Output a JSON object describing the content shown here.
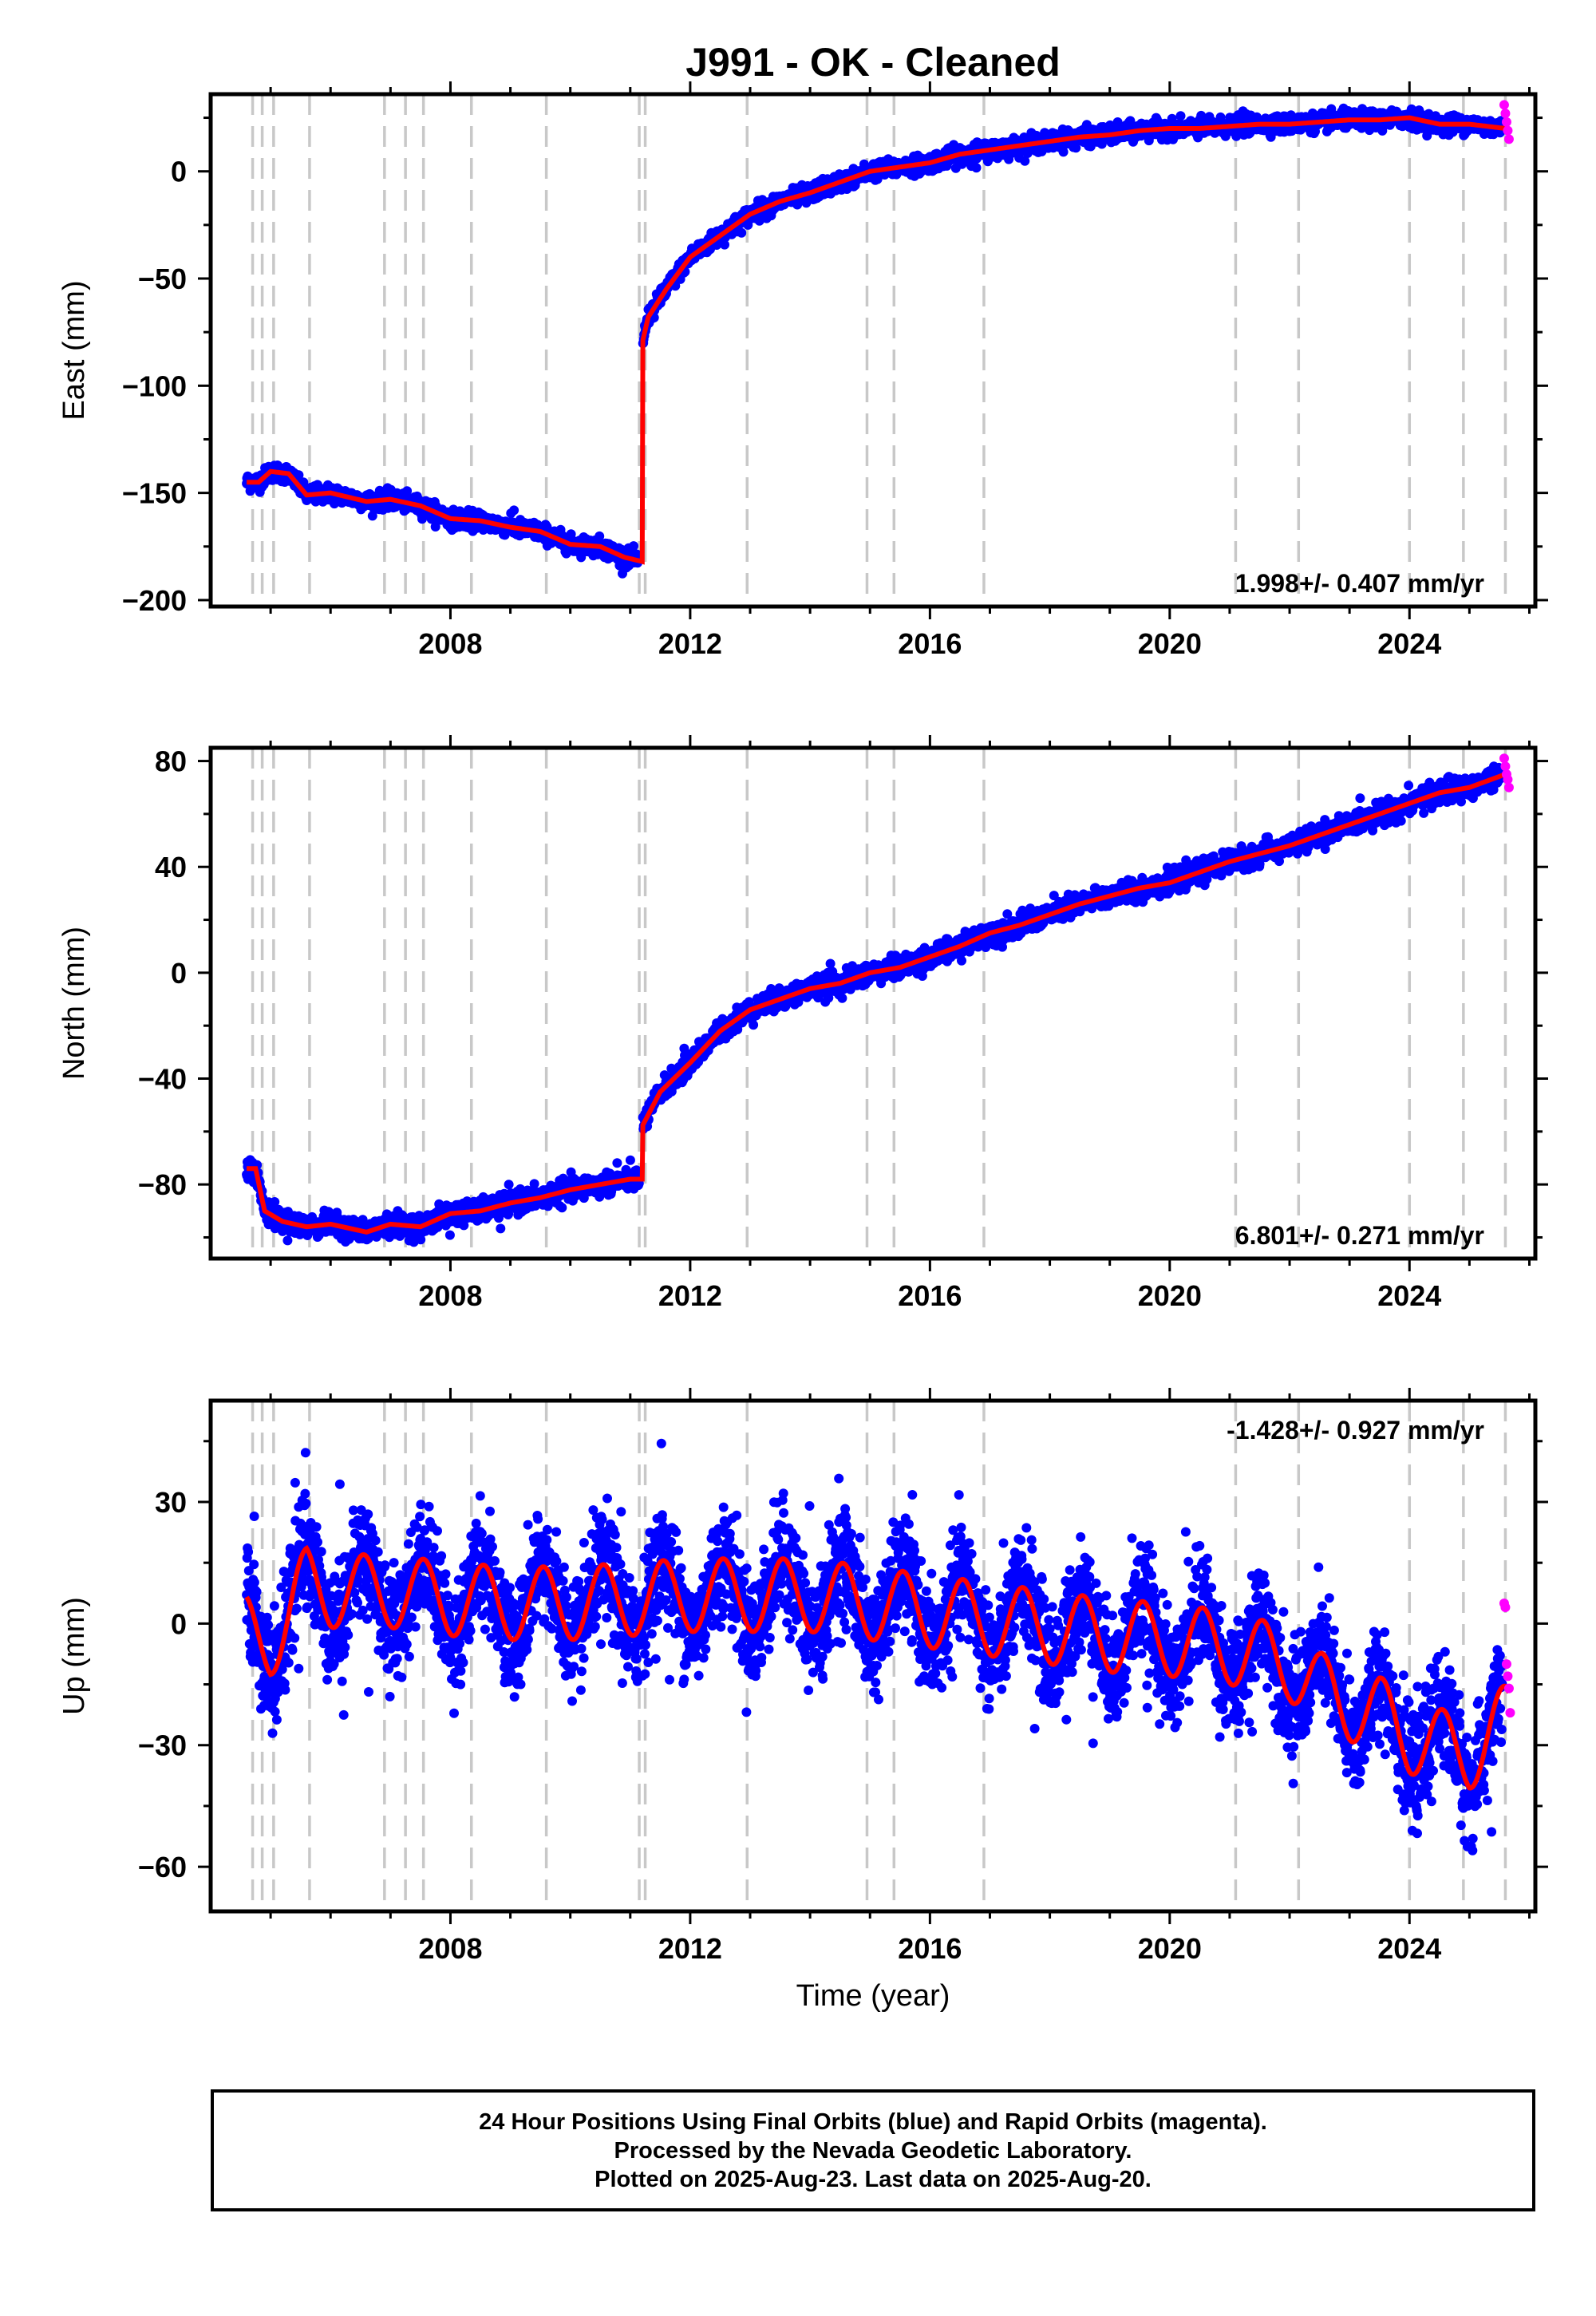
{
  "title": "J991  - OK - Cleaned",
  "colors": {
    "final_orbits": "#0000ff",
    "rapid_orbits": "#ff00ff",
    "model": "#ff0000",
    "event_lines": "#c8c8c8",
    "frame": "#000000"
  },
  "chart_data": [
    {
      "type": "scatter",
      "panel": "east",
      "ylabel": "East (mm)",
      "xlabel": "",
      "xlim": [
        2004.0,
        2026.1
      ],
      "ylim": [
        -203,
        36
      ],
      "yticks": [
        -200,
        -150,
        -100,
        -50,
        0
      ],
      "xticks": [
        2008,
        2012,
        2016,
        2020,
        2024
      ],
      "rate": "1.998+/- 0.407 mm/yr",
      "rate_position": "bottom-right",
      "grid": false,
      "event_lines_x": [
        2004.7,
        2004.86,
        2005.05,
        2005.65,
        2006.9,
        2007.25,
        2007.55,
        2008.35,
        2009.6,
        2011.15,
        2011.25,
        2012.95,
        2014.95,
        2015.4,
        2016.9,
        2021.1,
        2022.15,
        2024.0,
        2024.9,
        2025.6
      ],
      "model_knots": [
        [
          2004.6,
          -145
        ],
        [
          2004.8,
          -145
        ],
        [
          2005.0,
          -140
        ],
        [
          2005.3,
          -141
        ],
        [
          2005.6,
          -151
        ],
        [
          2006.0,
          -150
        ],
        [
          2006.6,
          -154
        ],
        [
          2007.0,
          -153
        ],
        [
          2007.5,
          -156
        ],
        [
          2008.0,
          -162
        ],
        [
          2008.5,
          -163
        ],
        [
          2009.0,
          -166
        ],
        [
          2009.5,
          -168
        ],
        [
          2010.0,
          -174
        ],
        [
          2010.5,
          -175
        ],
        [
          2010.9,
          -180
        ],
        [
          2011.2,
          -182
        ],
        [
          2011.2,
          -80
        ],
        [
          2011.3,
          -68
        ],
        [
          2011.6,
          -55
        ],
        [
          2012.0,
          -40
        ],
        [
          2012.5,
          -30
        ],
        [
          2013.0,
          -20
        ],
        [
          2013.5,
          -14
        ],
        [
          2014.0,
          -10
        ],
        [
          2014.5,
          -5
        ],
        [
          2015.0,
          0
        ],
        [
          2015.5,
          2
        ],
        [
          2016.0,
          4
        ],
        [
          2016.5,
          8
        ],
        [
          2017.0,
          10
        ],
        [
          2017.5,
          12
        ],
        [
          2018.0,
          14
        ],
        [
          2018.5,
          16
        ],
        [
          2019.0,
          17
        ],
        [
          2019.5,
          19
        ],
        [
          2020.0,
          20
        ],
        [
          2020.5,
          20
        ],
        [
          2021.0,
          21
        ],
        [
          2021.5,
          22
        ],
        [
          2022.0,
          22
        ],
        [
          2022.5,
          23
        ],
        [
          2023.0,
          24
        ],
        [
          2023.5,
          24
        ],
        [
          2024.0,
          25
        ],
        [
          2024.5,
          22
        ],
        [
          2025.0,
          22
        ],
        [
          2025.6,
          20
        ]
      ],
      "rapid_points": [
        [
          2025.58,
          31
        ],
        [
          2025.6,
          27
        ],
        [
          2025.62,
          23
        ],
        [
          2025.64,
          19
        ],
        [
          2025.66,
          15
        ]
      ]
    },
    {
      "type": "scatter",
      "panel": "north",
      "ylabel": "North (mm)",
      "xlabel": "",
      "xlim": [
        2004.0,
        2026.1
      ],
      "ylim": [
        -108,
        85
      ],
      "yticks": [
        -80,
        -40,
        0,
        40,
        80
      ],
      "xticks": [
        2008,
        2012,
        2016,
        2020,
        2024
      ],
      "rate": "6.801+/- 0.271 mm/yr",
      "rate_position": "bottom-right",
      "grid": false,
      "event_lines_x": [
        2004.7,
        2004.86,
        2005.05,
        2005.65,
        2006.9,
        2007.25,
        2007.55,
        2008.35,
        2009.6,
        2011.15,
        2011.25,
        2012.95,
        2014.95,
        2015.4,
        2016.9,
        2021.1,
        2022.15,
        2024.0,
        2024.9,
        2025.6
      ],
      "model_knots": [
        [
          2004.6,
          -74
        ],
        [
          2004.75,
          -74
        ],
        [
          2004.9,
          -90
        ],
        [
          2005.2,
          -94
        ],
        [
          2005.6,
          -96
        ],
        [
          2006.0,
          -95
        ],
        [
          2006.6,
          -98
        ],
        [
          2007.0,
          -95
        ],
        [
          2007.5,
          -96
        ],
        [
          2008.0,
          -91
        ],
        [
          2008.5,
          -90
        ],
        [
          2009.0,
          -87
        ],
        [
          2009.5,
          -85
        ],
        [
          2010.0,
          -82
        ],
        [
          2010.5,
          -80
        ],
        [
          2011.0,
          -78
        ],
        [
          2011.2,
          -78
        ],
        [
          2011.2,
          -58
        ],
        [
          2011.5,
          -45
        ],
        [
          2012.0,
          -34
        ],
        [
          2012.5,
          -22
        ],
        [
          2013.0,
          -14
        ],
        [
          2013.5,
          -10
        ],
        [
          2014.0,
          -6
        ],
        [
          2014.5,
          -4
        ],
        [
          2015.0,
          0
        ],
        [
          2015.5,
          2
        ],
        [
          2016.0,
          6
        ],
        [
          2016.5,
          10
        ],
        [
          2017.0,
          15
        ],
        [
          2017.5,
          18
        ],
        [
          2018.0,
          22
        ],
        [
          2018.5,
          26
        ],
        [
          2019.0,
          29
        ],
        [
          2019.5,
          32
        ],
        [
          2020.0,
          34
        ],
        [
          2020.5,
          38
        ],
        [
          2021.0,
          42
        ],
        [
          2021.5,
          45
        ],
        [
          2022.0,
          48
        ],
        [
          2022.5,
          52
        ],
        [
          2023.0,
          56
        ],
        [
          2023.5,
          60
        ],
        [
          2024.0,
          64
        ],
        [
          2024.5,
          68
        ],
        [
          2025.0,
          70
        ],
        [
          2025.6,
          75
        ]
      ],
      "rapid_points": [
        [
          2025.58,
          81
        ],
        [
          2025.6,
          78
        ],
        [
          2025.62,
          75
        ],
        [
          2025.64,
          73
        ],
        [
          2025.66,
          70
        ]
      ]
    },
    {
      "type": "scatter",
      "panel": "up",
      "ylabel": "Up (mm)",
      "xlabel": "Time (year)",
      "xlim": [
        2004.0,
        2026.1
      ],
      "ylim": [
        -71,
        55
      ],
      "yticks": [
        -60,
        -30,
        0,
        30
      ],
      "xticks": [
        2008,
        2012,
        2016,
        2020,
        2024
      ],
      "rate": "-1.428+/- 0.927 mm/yr",
      "rate_position": "top-right",
      "grid": false,
      "event_lines_x": [
        2004.7,
        2004.86,
        2005.05,
        2005.65,
        2006.9,
        2007.25,
        2007.55,
        2008.35,
        2009.6,
        2011.15,
        2011.25,
        2012.95,
        2014.95,
        2015.4,
        2016.9,
        2021.1,
        2022.15,
        2024.0,
        2024.9,
        2025.6
      ],
      "model_knots": [
        [
          2004.6,
          -2
        ],
        [
          2005.0,
          -4
        ],
        [
          2005.3,
          2
        ],
        [
          2005.6,
          10
        ],
        [
          2006.0,
          8
        ],
        [
          2007.0,
          8
        ],
        [
          2008.0,
          6
        ],
        [
          2009.0,
          5
        ],
        [
          2010.0,
          5
        ],
        [
          2011.0,
          6
        ],
        [
          2012.0,
          7
        ],
        [
          2013.0,
          7
        ],
        [
          2014.0,
          7
        ],
        [
          2015.0,
          5
        ],
        [
          2016.0,
          3
        ],
        [
          2017.0,
          1
        ],
        [
          2018.0,
          -1
        ],
        [
          2019.0,
          -3
        ],
        [
          2020.0,
          -4
        ],
        [
          2021.0,
          -6
        ],
        [
          2022.0,
          -10
        ],
        [
          2022.5,
          -16
        ],
        [
          2023.0,
          -20
        ],
        [
          2023.5,
          -22
        ],
        [
          2024.0,
          -28
        ],
        [
          2024.5,
          -30
        ],
        [
          2025.0,
          -32
        ],
        [
          2025.6,
          -24
        ]
      ],
      "seasonal_amplitude": 9,
      "rapid_points": [
        [
          2025.58,
          5
        ],
        [
          2025.6,
          4
        ],
        [
          2025.62,
          -10
        ],
        [
          2025.64,
          -13
        ],
        [
          2025.66,
          -16
        ],
        [
          2025.68,
          -22
        ]
      ]
    }
  ],
  "footer": {
    "line1": "24 Hour Positions Using Final Orbits (blue) and Rapid Orbits (magenta).",
    "line2": "Processed by the Nevada Geodetic Laboratory.",
    "line3": "Plotted on 2025-Aug-23. Last data on 2025-Aug-20."
  }
}
